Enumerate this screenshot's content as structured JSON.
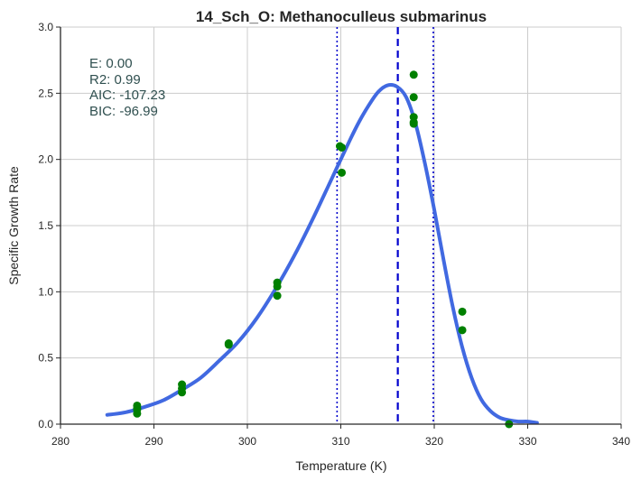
{
  "chart_data": {
    "type": "scatter",
    "title": "14_Sch_O: Methanoculleus submarinus",
    "xlabel": "Temperature (K)",
    "ylabel": "Specific Growth Rate",
    "xlim": [
      280,
      340
    ],
    "ylim": [
      0.0,
      3.0
    ],
    "x_ticks": [
      280,
      290,
      300,
      310,
      320,
      330,
      340
    ],
    "y_ticks": [
      0.0,
      0.5,
      1.0,
      1.5,
      2.0,
      2.5,
      3.0
    ],
    "y_tick_labels": [
      "0.0",
      "0.5",
      "1.0",
      "1.5",
      "2.0",
      "2.5",
      "3.0"
    ],
    "grid": true,
    "stats": {
      "e": "E:  0.00",
      "r2": "R2:  0.99",
      "aic": "AIC: -107.23",
      "bic": "BIC: -96.99"
    },
    "points": {
      "color": "#008000",
      "x": [
        288.2,
        288.2,
        288.2,
        288.2,
        293.0,
        293.0,
        293.0,
        298.0,
        298.0,
        303.2,
        303.2,
        303.2,
        309.9,
        310.1,
        310.1,
        317.8,
        317.8,
        317.8,
        317.8,
        317.8,
        323.0,
        323.0,
        328.0
      ],
      "y": [
        0.08,
        0.11,
        0.12,
        0.14,
        0.24,
        0.27,
        0.3,
        0.6,
        0.61,
        0.97,
        1.04,
        1.07,
        2.1,
        2.09,
        1.9,
        2.64,
        2.47,
        2.32,
        2.28,
        2.27,
        0.85,
        0.71,
        0.0
      ]
    },
    "fit": {
      "color": "#4169e1",
      "x": [
        285,
        287,
        289,
        291,
        293,
        295,
        297,
        299,
        301,
        303,
        305,
        307,
        309,
        311,
        312,
        313,
        314,
        315,
        316,
        317,
        318,
        319,
        320,
        321,
        322,
        323,
        324,
        325,
        326,
        327,
        328,
        329,
        330,
        331
      ],
      "y": [
        0.07,
        0.09,
        0.13,
        0.18,
        0.26,
        0.35,
        0.48,
        0.62,
        0.8,
        1.02,
        1.27,
        1.55,
        1.85,
        2.15,
        2.29,
        2.41,
        2.51,
        2.56,
        2.55,
        2.47,
        2.27,
        1.97,
        1.62,
        1.24,
        0.88,
        0.58,
        0.35,
        0.19,
        0.1,
        0.05,
        0.03,
        0.02,
        0.02,
        0.01
      ]
    },
    "vlines": [
      {
        "x": 316.1,
        "style": "dashed",
        "color": "#0000cd"
      },
      {
        "x": 309.6,
        "style": "dotted",
        "color": "#0000cd"
      },
      {
        "x": 319.9,
        "style": "dotted",
        "color": "#0000cd"
      }
    ]
  }
}
